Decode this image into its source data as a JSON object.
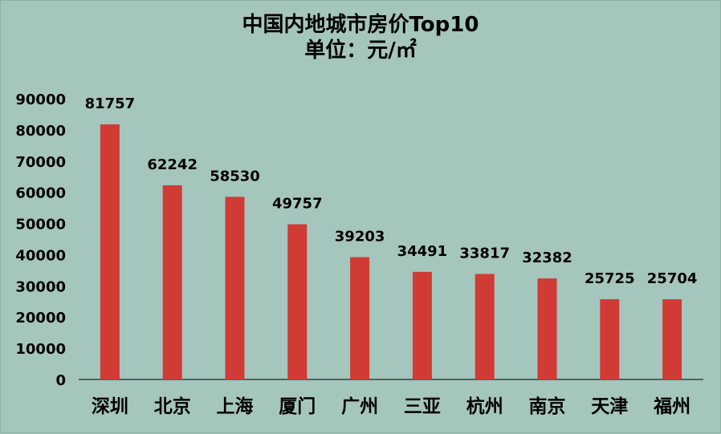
{
  "chart_data": {
    "type": "bar",
    "title": "中国内地城市房价Top10",
    "subtitle": "单位：元/㎡",
    "categories": [
      "深圳",
      "北京",
      "上海",
      "厦门",
      "广州",
      "三亚",
      "杭州",
      "南京",
      "天津",
      "福州"
    ],
    "values": [
      81757,
      62242,
      58530,
      49757,
      39203,
      34491,
      33817,
      32382,
      25725,
      25704
    ],
    "data_labels": [
      "81757",
      "62242",
      "58530",
      "49757",
      "39203",
      "34491",
      "33817",
      "32382",
      "25725",
      "25704"
    ],
    "y_ticks": [
      "0",
      "10000",
      "20000",
      "30000",
      "40000",
      "50000",
      "60000",
      "70000",
      "80000",
      "90000"
    ],
    "ylim": [
      0,
      90000
    ],
    "xlabel": "",
    "ylabel": "",
    "grid": false,
    "legend": "none",
    "bar_color": "#d13b35",
    "background_color": "#a5c6bd"
  }
}
